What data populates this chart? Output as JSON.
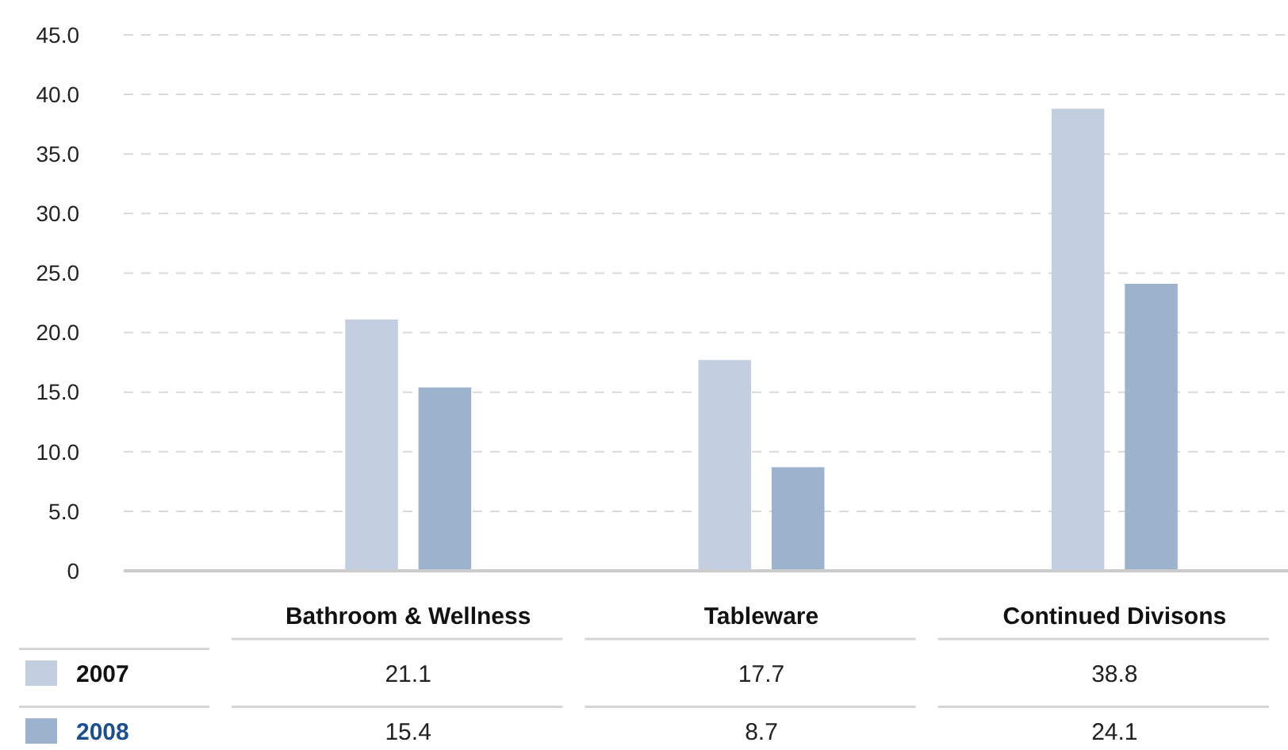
{
  "chart_data": {
    "type": "bar",
    "categories": [
      "Bathroom & Wellness",
      "Tableware",
      "Continued Divisons"
    ],
    "series": [
      {
        "name": "2007",
        "color": "#c3cfe0",
        "values": [
          21.1,
          17.7,
          38.8
        ]
      },
      {
        "name": "2008",
        "color": "#9db2cd",
        "values": [
          15.4,
          8.7,
          24.1
        ]
      }
    ],
    "ylim": [
      0,
      45
    ],
    "yticks": [
      {
        "value": 0,
        "label": "0"
      },
      {
        "value": 5,
        "label": "5.0"
      },
      {
        "value": 10,
        "label": "10.0"
      },
      {
        "value": 15,
        "label": "15.0"
      },
      {
        "value": 20,
        "label": "20.0"
      },
      {
        "value": 25,
        "label": "25.0"
      },
      {
        "value": 30,
        "label": "30.0"
      },
      {
        "value": 35,
        "label": "35.0"
      },
      {
        "value": 40,
        "label": "40.0"
      },
      {
        "value": 45,
        "label": "45.0"
      }
    ],
    "grid": "y",
    "legend": "bottom",
    "data_labels": true
  }
}
